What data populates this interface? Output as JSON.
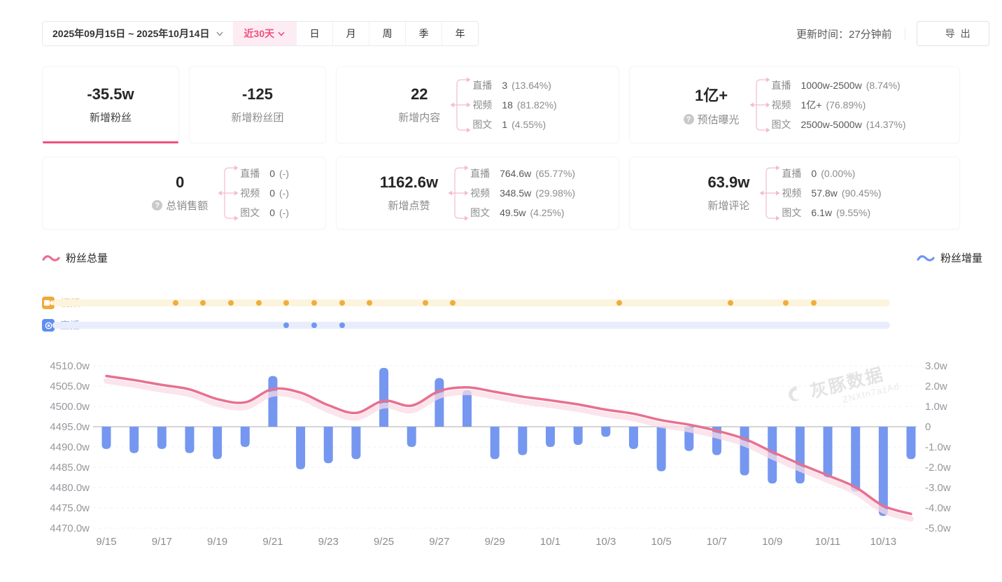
{
  "toolbar": {
    "date_range": "2025年09月15日 ~ 2025年10月14日",
    "quick_range": "近30天",
    "period_tabs": [
      "日",
      "月",
      "周",
      "季",
      "年"
    ],
    "updated_label": "更新时间：27分钟前",
    "export_label": "导出"
  },
  "stats": {
    "row1": [
      {
        "value": "-35.5w",
        "label": "新增粉丝"
      },
      {
        "value": "-125",
        "label": "新增粉丝团"
      },
      {
        "value": "22",
        "label": "新增内容",
        "breakdown": [
          {
            "name": "直播",
            "value": "3",
            "pct": "(13.64%)"
          },
          {
            "name": "视频",
            "value": "18",
            "pct": "(81.82%)"
          },
          {
            "name": "图文",
            "value": "1",
            "pct": "(4.55%)"
          }
        ]
      },
      {
        "value": "1亿+",
        "label": "预估曝光",
        "breakdown": [
          {
            "name": "直播",
            "value": "1000w-2500w",
            "pct": "(8.74%)"
          },
          {
            "name": "视频",
            "value": "1亿+",
            "pct": "(76.89%)"
          },
          {
            "name": "图文",
            "value": "2500w-5000w",
            "pct": "(14.37%)"
          }
        ]
      }
    ],
    "row2": [
      {
        "value": "0",
        "label": "总销售额",
        "breakdown": [
          {
            "name": "直播",
            "value": "0",
            "pct": "(-)"
          },
          {
            "name": "视频",
            "value": "0",
            "pct": "(-)"
          },
          {
            "name": "图文",
            "value": "0",
            "pct": "(-)"
          }
        ]
      },
      {
        "value": "1162.6w",
        "label": "新增点赞",
        "breakdown": [
          {
            "name": "直播",
            "value": "764.6w",
            "pct": "(65.77%)"
          },
          {
            "name": "视频",
            "value": "348.5w",
            "pct": "(29.98%)"
          },
          {
            "name": "图文",
            "value": "49.5w",
            "pct": "(4.25%)"
          }
        ]
      },
      {
        "value": "63.9w",
        "label": "新增评论",
        "breakdown": [
          {
            "name": "直播",
            "value": "0",
            "pct": "(0.00%)"
          },
          {
            "name": "视频",
            "value": "57.8w",
            "pct": "(90.45%)"
          },
          {
            "name": "图文",
            "value": "6.1w",
            "pct": "(9.55%)"
          }
        ]
      }
    ]
  },
  "legend": {
    "left": "粉丝总量",
    "right": "粉丝增量"
  },
  "timeline": {
    "video_label": "视频",
    "live_label": "直播"
  },
  "watermark": {
    "brand": "灰豚数据",
    "code": "ZNXtn7azAd"
  },
  "colors": {
    "accent_pink": "#f0517e",
    "line_pink": "#e8708f",
    "line_shadow": "#f9dbe4",
    "bar_blue": "#7597f0",
    "video_dot": "#f0ad3c",
    "video_track": "#fcf4dd",
    "live_dot": "#6e96f2",
    "live_track": "#e9edfb",
    "grid": "#f0f0f0",
    "zero_line": "#c9c9c9",
    "axis_text": "#95989d"
  },
  "chart_data": {
    "type": "line+bar",
    "x": [
      "9/15",
      "9/16",
      "9/17",
      "9/18",
      "9/19",
      "9/20",
      "9/21",
      "9/22",
      "9/23",
      "9/24",
      "9/25",
      "9/26",
      "9/27",
      "9/28",
      "9/29",
      "9/30",
      "10/1",
      "10/2",
      "10/3",
      "10/4",
      "10/5",
      "10/6",
      "10/7",
      "10/8",
      "10/9",
      "10/10",
      "10/11",
      "10/12",
      "10/13",
      "10/14"
    ],
    "x_tick_every": 2,
    "series": [
      {
        "name": "粉丝总量",
        "type": "line",
        "axis": "left",
        "values": [
          4507.5,
          4506.5,
          4505.3,
          4504.2,
          4501.8,
          4501.0,
          4504.3,
          4503.4,
          4500.3,
          4498.4,
          4501.4,
          4500.2,
          4503.8,
          4504.7,
          4503.6,
          4502.4,
          4501.5,
          4500.5,
          4499.2,
          4498.2,
          4496.6,
          4495.5,
          4494.0,
          4492.0,
          4488.8,
          4485.8,
          4483.0,
          4480.1,
          4475.5,
          4473.5
        ]
      },
      {
        "name": "粉丝增量",
        "type": "bar",
        "axis": "right",
        "values": [
          -1.1,
          -1.3,
          -1.1,
          -1.3,
          -1.6,
          -1.0,
          2.5,
          -2.1,
          -1.8,
          -1.6,
          2.9,
          -1.0,
          2.4,
          1.8,
          -1.6,
          -1.4,
          -1.0,
          -0.9,
          -0.5,
          -1.1,
          -2.2,
          -1.2,
          -1.4,
          -2.4,
          -2.8,
          -2.8,
          -2.5,
          -3.2,
          -4.4,
          -1.6
        ]
      }
    ],
    "left_axis": {
      "min": 4470,
      "max": 4510,
      "step": 5,
      "ticks": [
        "4510.0w",
        "4505.0w",
        "4500.0w",
        "4495.0w",
        "4490.0w",
        "4485.0w",
        "4480.0w",
        "4475.0w",
        "4470.0w"
      ]
    },
    "right_axis": {
      "min": -5,
      "max": 3,
      "step": 1,
      "ticks": [
        "3.0w",
        "2.0w",
        "1.0w",
        "0",
        "-1.0w",
        "-2.0w",
        "-3.0w",
        "-4.0w",
        "-5.0w"
      ]
    },
    "video_days": [
      4,
      5,
      6,
      7,
      8,
      9,
      10,
      11,
      13,
      14,
      20,
      24,
      26,
      27
    ],
    "live_days": [
      8,
      9,
      10
    ],
    "grid": "dashed",
    "legend_position": "top-left/top-right"
  }
}
